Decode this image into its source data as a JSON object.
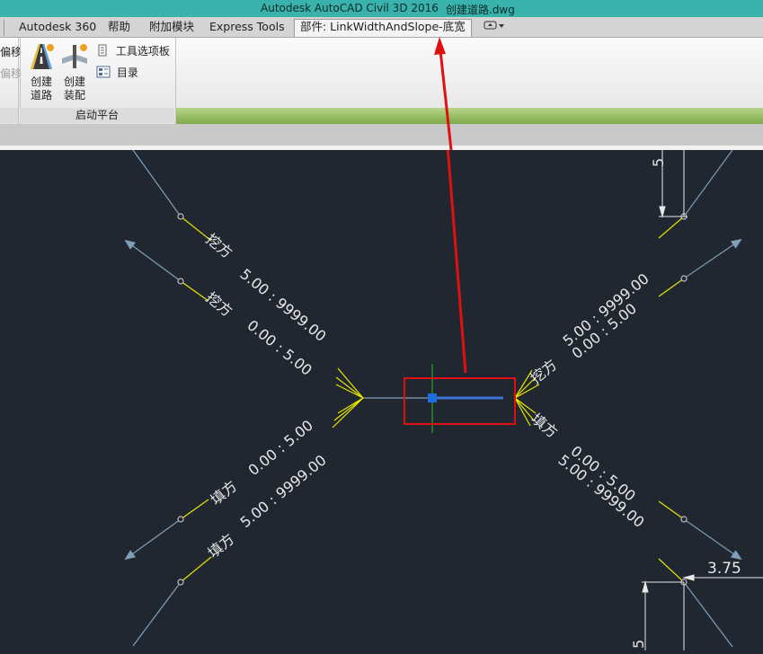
{
  "titlebar": {
    "app_title": "Autodesk AutoCAD Civil 3D 2016",
    "file_name": "创建道路.dwg",
    "color": "#38b2ab"
  },
  "tabs": [
    {
      "label": "Autodesk 360"
    },
    {
      "label": "帮助"
    },
    {
      "label": "附加模块"
    },
    {
      "label": "Express Tools"
    },
    {
      "label": "部件: LinkWidthAndSlope-底宽",
      "active": true
    }
  ],
  "ribbon": {
    "left_partial_labels": [
      "偏移",
      "偏移"
    ],
    "panel_title": "启动平台",
    "buttons": [
      {
        "label": "创建\n道路",
        "icon": "road-icon"
      },
      {
        "label": "创建\n装配",
        "icon": "assembly-icon"
      }
    ],
    "small_buttons": [
      {
        "label": "工具选项板",
        "icon": "tool-palette-icon"
      },
      {
        "label": "目录",
        "icon": "catalog-icon"
      }
    ]
  },
  "drawing": {
    "cut_label": "挖方",
    "fill_label": "填方",
    "ratio_cut_top": "5.00 : 9999.00",
    "ratio_cut_inner": "0.00 : 5.00",
    "ratio_fill_inner": "0.00 : 5.00",
    "ratio_fill_outer": "5.00 : 9999.00",
    "dim_width": "3.75",
    "dim_height": "5",
    "colors": {
      "link": "#7f9fb9",
      "yellow": "#e6e600",
      "highlight": "#e01010",
      "accent_line": "#3c74d6",
      "green": "#22b822"
    }
  },
  "annotation": {
    "arrow_color": "#e01010"
  }
}
